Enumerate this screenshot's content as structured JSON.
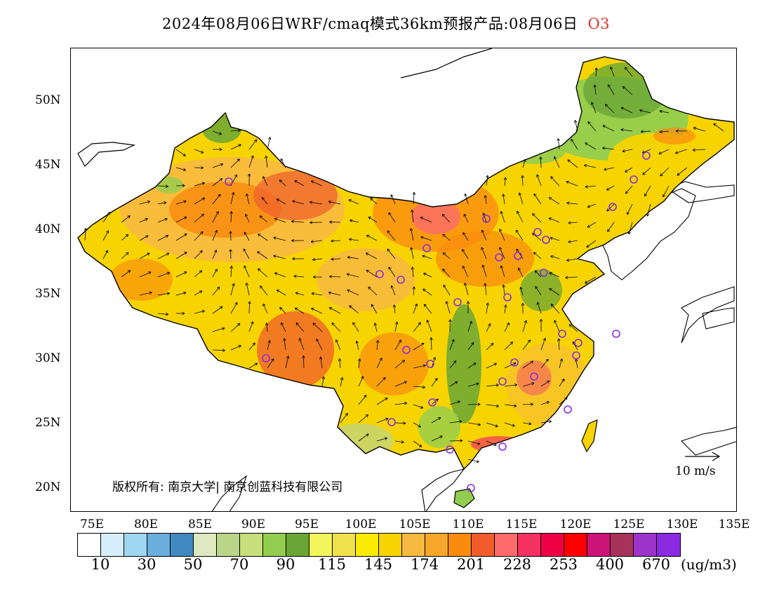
{
  "title": {
    "main": "2024年08月06日WRF/cmaq模式36km预报产品:08月06日",
    "species": "O3"
  },
  "map": {
    "lat_labels": [
      "50N",
      "45N",
      "40N",
      "35N",
      "30N",
      "25N",
      "20N"
    ],
    "lon_labels": [
      "75E",
      "80E",
      "85E",
      "90E",
      "95E",
      "100E",
      "105E",
      "110E",
      "115E",
      "120E",
      "125E",
      "130E",
      "135E"
    ],
    "copyright": "版权所有: 南京大学| 南京创蓝科技有限公司",
    "wind_reference": "10 m/s"
  },
  "colorbar": {
    "colors": [
      "#ffffff",
      "#d6eefa",
      "#9fd6f2",
      "#6aaedc",
      "#3f88c0",
      "#dfe8bf",
      "#bad48a",
      "#c7e07d",
      "#93cd4f",
      "#6aa636",
      "#f2f65c",
      "#f0e24c",
      "#fbeb00",
      "#f7d400",
      "#f8b941",
      "#f9a72a",
      "#f98c0f",
      "#f05c2c",
      "#fd6b6b",
      "#f53262",
      "#ef0045",
      "#fc0000",
      "#cc1378",
      "#a6325a",
      "#9c33ca",
      "#8a2be2"
    ],
    "labels": [
      "10",
      "30",
      "50",
      "70",
      "90",
      "115",
      "145",
      "174",
      "201",
      "228",
      "253",
      "400",
      "670"
    ],
    "unit": "(ug/m3)"
  }
}
